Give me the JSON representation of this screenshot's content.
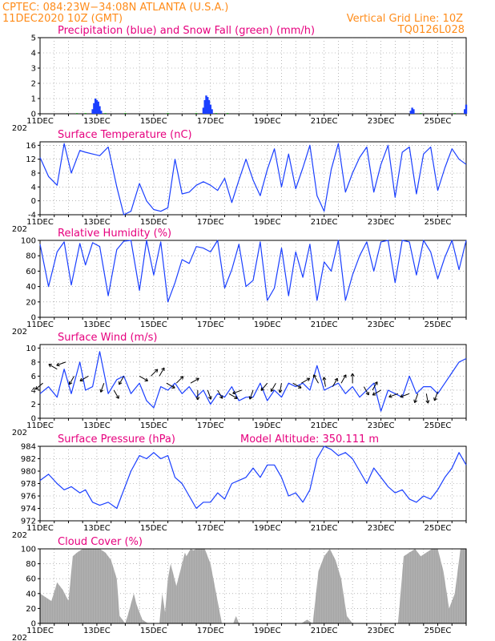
{
  "header": {
    "line1": "CPTEC:   084:23W−34:08N   ATLANTA (U.S.A.)",
    "line2": "11DEC2020 10Z (GMT)",
    "grid_note": "Vertical Grid Line: 10Z",
    "model_code": "TQ0126L028"
  },
  "colors": {
    "header": "#ff8c1a",
    "panel_title": "#e6007e",
    "line": "#1a3fff",
    "precip": "#1a3fff",
    "snow": "#22aa22",
    "cloud": "#a6a6a6",
    "grid": "#888888"
  },
  "chart_data": [
    {
      "id": "precip",
      "type": "bar",
      "title": "Precipitation (blue) and Snow Fall (green) (mm/h)",
      "ylim": [
        0,
        5
      ],
      "yticks": [
        0,
        1,
        2,
        3,
        4,
        5
      ],
      "xticks": [
        "11DEC",
        "13DEC",
        "15DEC",
        "17DEC",
        "19DEC",
        "21DEC",
        "23DEC",
        "25DEC"
      ],
      "x_range_days": [
        11.0,
        26.0
      ],
      "grid": true,
      "series": [
        {
          "name": "Precipitation",
          "color": "#1a3fff",
          "points": [
            [
              12.85,
              0.3
            ],
            [
              12.9,
              0.7
            ],
            [
              12.95,
              1.0
            ],
            [
              13.0,
              0.9
            ],
            [
              13.05,
              0.8
            ],
            [
              13.1,
              0.5
            ],
            [
              13.15,
              0.2
            ],
            [
              16.75,
              0.4
            ],
            [
              16.8,
              0.9
            ],
            [
              16.85,
              1.2
            ],
            [
              16.9,
              1.1
            ],
            [
              16.95,
              0.9
            ],
            [
              17.0,
              0.6
            ],
            [
              17.05,
              0.3
            ],
            [
              24.05,
              0.2
            ],
            [
              24.1,
              0.4
            ],
            [
              24.15,
              0.3
            ],
            [
              25.95,
              0.3
            ],
            [
              26.0,
              0.6
            ]
          ]
        },
        {
          "name": "Snow Fall",
          "color": "#22aa22",
          "points": [
            [
              12.3,
              0.05
            ],
            [
              12.6,
              0.05
            ],
            [
              13.3,
              0.05
            ],
            [
              14.0,
              0.05
            ],
            [
              15.5,
              0.05
            ],
            [
              16.5,
              0.05
            ],
            [
              17.2,
              0.05
            ],
            [
              17.6,
              0.05
            ],
            [
              24.4,
              0.05
            ],
            [
              25.6,
              0.05
            ]
          ]
        }
      ]
    },
    {
      "id": "temp",
      "type": "line",
      "title": "Surface Temperature (nC)",
      "ylim": [
        -4,
        17
      ],
      "yticks": [
        -4,
        0,
        4,
        8,
        12,
        16
      ],
      "xticks": [
        "11DEC",
        "13DEC",
        "15DEC",
        "17DEC",
        "19DEC",
        "21DEC",
        "23DEC",
        "25DEC"
      ],
      "x_range_days": [
        11.0,
        26.0
      ],
      "grid": true,
      "x": [
        11.0,
        11.3,
        11.6,
        11.85,
        12.1,
        12.4,
        12.6,
        12.85,
        13.1,
        13.4,
        13.7,
        13.95,
        14.2,
        14.5,
        14.75,
        15.0,
        15.25,
        15.5,
        15.75,
        16.0,
        16.25,
        16.5,
        16.75,
        17.0,
        17.25,
        17.5,
        17.75,
        18.0,
        18.25,
        18.5,
        18.75,
        19.0,
        19.25,
        19.5,
        19.75,
        20.0,
        20.25,
        20.5,
        20.75,
        21.0,
        21.25,
        21.5,
        21.75,
        22.0,
        22.25,
        22.5,
        22.75,
        23.0,
        23.25,
        23.5,
        23.75,
        24.0,
        24.25,
        24.5,
        24.75,
        25.0,
        25.25,
        25.5,
        25.75,
        26.0
      ],
      "y": [
        12.5,
        7,
        4.5,
        16.5,
        8,
        14.5,
        14,
        13.5,
        13,
        15.5,
        4,
        -4.5,
        -3,
        5,
        0,
        -2.5,
        -3,
        -2,
        12,
        2,
        2.5,
        4.5,
        5.5,
        4.5,
        3,
        6.5,
        -0.5,
        6,
        12,
        6,
        1.5,
        9,
        15,
        4,
        13.5,
        3.5,
        9.5,
        16,
        1.5,
        -3,
        9,
        16.5,
        2.5,
        8,
        12.5,
        15.5,
        2.5,
        10.5,
        16,
        1,
        14,
        15.5,
        2,
        13.5,
        15.5,
        3,
        9.5,
        15,
        12,
        10.5
      ]
    },
    {
      "id": "rh",
      "type": "line",
      "title": "Relative Humidity (%)",
      "ylim": [
        0,
        100
      ],
      "yticks": [
        0,
        20,
        40,
        60,
        80,
        100
      ],
      "xticks": [
        "11DEC",
        "13DEC",
        "15DEC",
        "17DEC",
        "19DEC",
        "21DEC",
        "23DEC",
        "25DEC"
      ],
      "x_range_days": [
        11.0,
        26.0
      ],
      "grid": true,
      "x": [
        11.0,
        11.3,
        11.6,
        11.85,
        12.1,
        12.4,
        12.6,
        12.85,
        13.1,
        13.4,
        13.7,
        13.95,
        14.2,
        14.5,
        14.75,
        15.0,
        15.25,
        15.5,
        15.75,
        16.0,
        16.25,
        16.5,
        16.75,
        17.0,
        17.25,
        17.5,
        17.75,
        18.0,
        18.25,
        18.5,
        18.75,
        19.0,
        19.25,
        19.5,
        19.75,
        20.0,
        20.25,
        20.5,
        20.75,
        21.0,
        21.25,
        21.5,
        21.75,
        22.0,
        22.25,
        22.5,
        22.75,
        23.0,
        23.25,
        23.5,
        23.75,
        24.0,
        24.25,
        24.5,
        24.75,
        25.0,
        25.25,
        25.5,
        25.75,
        26.0
      ],
      "y": [
        95,
        40,
        85,
        98,
        42,
        96,
        68,
        97,
        92,
        28,
        88,
        99,
        100,
        35,
        100,
        55,
        98,
        20,
        45,
        75,
        70,
        92,
        90,
        85,
        100,
        38,
        62,
        95,
        40,
        48,
        98,
        22,
        38,
        90,
        28,
        85,
        52,
        95,
        22,
        72,
        60,
        100,
        22,
        55,
        80,
        98,
        60,
        98,
        100,
        45,
        100,
        98,
        55,
        100,
        85,
        50,
        78,
        100,
        62,
        100
      ]
    },
    {
      "id": "wind",
      "type": "line",
      "title": "Surface Wind (m/s)",
      "ylim": [
        0,
        10.5
      ],
      "yticks": [
        0,
        2,
        4,
        6,
        8,
        10
      ],
      "xticks": [
        "11DEC",
        "13DEC",
        "15DEC",
        "17DEC",
        "19DEC",
        "21DEC",
        "23DEC",
        "25DEC"
      ],
      "x_range_days": [
        11.0,
        26.0
      ],
      "grid": true,
      "x": [
        11.0,
        11.3,
        11.6,
        11.85,
        12.1,
        12.4,
        12.6,
        12.85,
        13.1,
        13.4,
        13.7,
        13.95,
        14.2,
        14.5,
        14.75,
        15.0,
        15.25,
        15.5,
        15.75,
        16.0,
        16.25,
        16.5,
        16.75,
        17.0,
        17.25,
        17.5,
        17.75,
        18.0,
        18.25,
        18.5,
        18.75,
        19.0,
        19.25,
        19.5,
        19.75,
        20.0,
        20.25,
        20.5,
        20.75,
        21.0,
        21.25,
        21.5,
        21.75,
        22.0,
        22.25,
        22.5,
        22.75,
        23.0,
        23.25,
        23.5,
        23.75,
        24.0,
        24.25,
        24.5,
        24.75,
        25.0,
        25.25,
        25.5,
        25.75,
        26.0
      ],
      "y": [
        3.5,
        4.5,
        3,
        7,
        3.5,
        8,
        4,
        4.5,
        9.5,
        3.5,
        5.5,
        6,
        3.5,
        5,
        2.5,
        1.5,
        4.5,
        4,
        5,
        3.5,
        4.5,
        3,
        4,
        2,
        3.5,
        3,
        4.5,
        2.5,
        3,
        3,
        5,
        2.5,
        4,
        3,
        5,
        4.5,
        5,
        4,
        7.5,
        4,
        4.5,
        5,
        3.5,
        4.5,
        3,
        4,
        5,
        1,
        4,
        3.5,
        3,
        6,
        3.5,
        4.5,
        4.5,
        3.5,
        5,
        6.5,
        8,
        8.5
      ]
    },
    {
      "id": "pressure",
      "type": "line",
      "title": "Surface Pressure (hPa)",
      "annotation": "Model Altitude: 350.111 m",
      "ylim": [
        972,
        984
      ],
      "yticks": [
        972,
        974,
        976,
        978,
        980,
        982,
        984
      ],
      "xticks": [
        "11DEC",
        "13DEC",
        "15DEC",
        "17DEC",
        "19DEC",
        "21DEC",
        "23DEC",
        "25DEC"
      ],
      "x_range_days": [
        11.0,
        26.0
      ],
      "grid": true,
      "x": [
        11.0,
        11.3,
        11.6,
        11.85,
        12.1,
        12.4,
        12.6,
        12.85,
        13.1,
        13.4,
        13.7,
        13.95,
        14.2,
        14.5,
        14.75,
        15.0,
        15.25,
        15.5,
        15.75,
        16.0,
        16.25,
        16.5,
        16.75,
        17.0,
        17.25,
        17.5,
        17.75,
        18.0,
        18.25,
        18.5,
        18.75,
        19.0,
        19.25,
        19.5,
        19.75,
        20.0,
        20.25,
        20.5,
        20.75,
        21.0,
        21.25,
        21.5,
        21.75,
        22.0,
        22.25,
        22.5,
        22.75,
        23.0,
        23.25,
        23.5,
        23.75,
        24.0,
        24.25,
        24.5,
        24.75,
        25.0,
        25.25,
        25.5,
        25.75,
        26.0
      ],
      "y": [
        978.5,
        979.5,
        978,
        977,
        977.5,
        976.5,
        977,
        975,
        974.5,
        975,
        974,
        977,
        980,
        982.5,
        982,
        983,
        982,
        982.5,
        979,
        978,
        976,
        974,
        975,
        975,
        976.5,
        975.5,
        978,
        978.5,
        979,
        980.5,
        979,
        981,
        981,
        979,
        976,
        976.5,
        975,
        977,
        982,
        984,
        983.5,
        982.5,
        983,
        982,
        980,
        978,
        980.5,
        979,
        977.5,
        976.5,
        977,
        975.5,
        975,
        976,
        975.5,
        977,
        979,
        980.5,
        983,
        981
      ]
    },
    {
      "id": "cloud",
      "type": "area",
      "title": "Cloud Cover (%)",
      "ylim": [
        0,
        100
      ],
      "yticks": [
        0,
        20,
        40,
        60,
        80,
        100
      ],
      "xticks": [
        "11DEC",
        "13DEC",
        "15DEC",
        "17DEC",
        "19DEC",
        "21DEC",
        "23DEC",
        "25DEC"
      ],
      "x_range_days": [
        11.0,
        26.0
      ],
      "grid": true,
      "x": [
        11.0,
        11.4,
        11.6,
        11.8,
        12.0,
        12.15,
        12.3,
        12.5,
        12.7,
        12.9,
        13.1,
        13.3,
        13.5,
        13.7,
        13.8,
        14.0,
        14.1,
        14.3,
        14.4,
        14.6,
        14.8,
        15.0,
        15.2,
        15.3,
        15.4,
        15.5,
        15.6,
        15.8,
        16.0,
        16.1,
        16.15,
        16.3,
        16.4,
        16.5,
        16.6,
        16.8,
        17.0,
        17.2,
        17.4,
        17.6,
        17.8,
        17.9,
        18.0,
        18.2,
        18.4,
        18.6,
        18.8,
        19.0,
        19.2,
        19.4,
        19.6,
        19.8,
        20.0,
        20.2,
        20.4,
        20.6,
        20.8,
        21.0,
        21.2,
        21.4,
        21.6,
        21.8,
        22.0,
        22.2,
        22.4,
        22.6,
        22.8,
        23.0,
        23.2,
        23.4,
        23.6,
        23.8,
        24.0,
        24.2,
        24.4,
        24.6,
        24.8,
        25.0,
        25.2,
        25.4,
        25.6,
        25.8,
        26.0
      ],
      "y": [
        40,
        30,
        55,
        45,
        30,
        90,
        95,
        100,
        100,
        100,
        100,
        95,
        85,
        60,
        10,
        0,
        12,
        40,
        25,
        5,
        0,
        0,
        0,
        40,
        15,
        60,
        80,
        50,
        80,
        95,
        90,
        100,
        98,
        100,
        100,
        100,
        80,
        40,
        0,
        0,
        0,
        10,
        0,
        0,
        0,
        0,
        0,
        0,
        0,
        0,
        0,
        0,
        0,
        0,
        5,
        0,
        70,
        90,
        100,
        85,
        60,
        10,
        0,
        0,
        0,
        0,
        0,
        0,
        0,
        0,
        0,
        90,
        95,
        100,
        90,
        95,
        100,
        100,
        70,
        20,
        40,
        100,
        100
      ]
    }
  ],
  "wind_arrows": [
    [
      11.1,
      5,
      220
    ],
    [
      11.6,
      7,
      150
    ],
    [
      11.9,
      8,
      200
    ],
    [
      12.2,
      6,
      240
    ],
    [
      12.7,
      6,
      210
    ],
    [
      13.25,
      5,
      250
    ],
    [
      13.6,
      4,
      300
    ],
    [
      13.95,
      6,
      240
    ],
    [
      14.5,
      6,
      330
    ],
    [
      14.9,
      6,
      45
    ],
    [
      15.2,
      6,
      60
    ],
    [
      15.45,
      5,
      330
    ],
    [
      15.8,
      5,
      45
    ],
    [
      16.3,
      5,
      30
    ],
    [
      16.55,
      4,
      270
    ],
    [
      16.9,
      4,
      290
    ],
    [
      17.25,
      4,
      300
    ],
    [
      17.65,
      3.5,
      330
    ],
    [
      18.1,
      4,
      200
    ],
    [
      18.5,
      4,
      250
    ],
    [
      19.0,
      5,
      230
    ],
    [
      19.3,
      5,
      240
    ],
    [
      19.5,
      5,
      260
    ],
    [
      19.9,
      5,
      330
    ],
    [
      20.2,
      5,
      30
    ],
    [
      20.8,
      5,
      120
    ],
    [
      21.05,
      4.5,
      100
    ],
    [
      21.3,
      4.5,
      60
    ],
    [
      21.6,
      5,
      60
    ],
    [
      22.0,
      5,
      90
    ],
    [
      22.4,
      4.5,
      300
    ],
    [
      22.7,
      4,
      60
    ],
    [
      23.0,
      4,
      210
    ],
    [
      23.6,
      3.5,
      200
    ],
    [
      24.0,
      3.5,
      200
    ],
    [
      24.3,
      3.5,
      250
    ],
    [
      24.6,
      3.5,
      280
    ],
    [
      25.0,
      3.8,
      250
    ]
  ],
  "footer": {
    "year_label": "202"
  }
}
